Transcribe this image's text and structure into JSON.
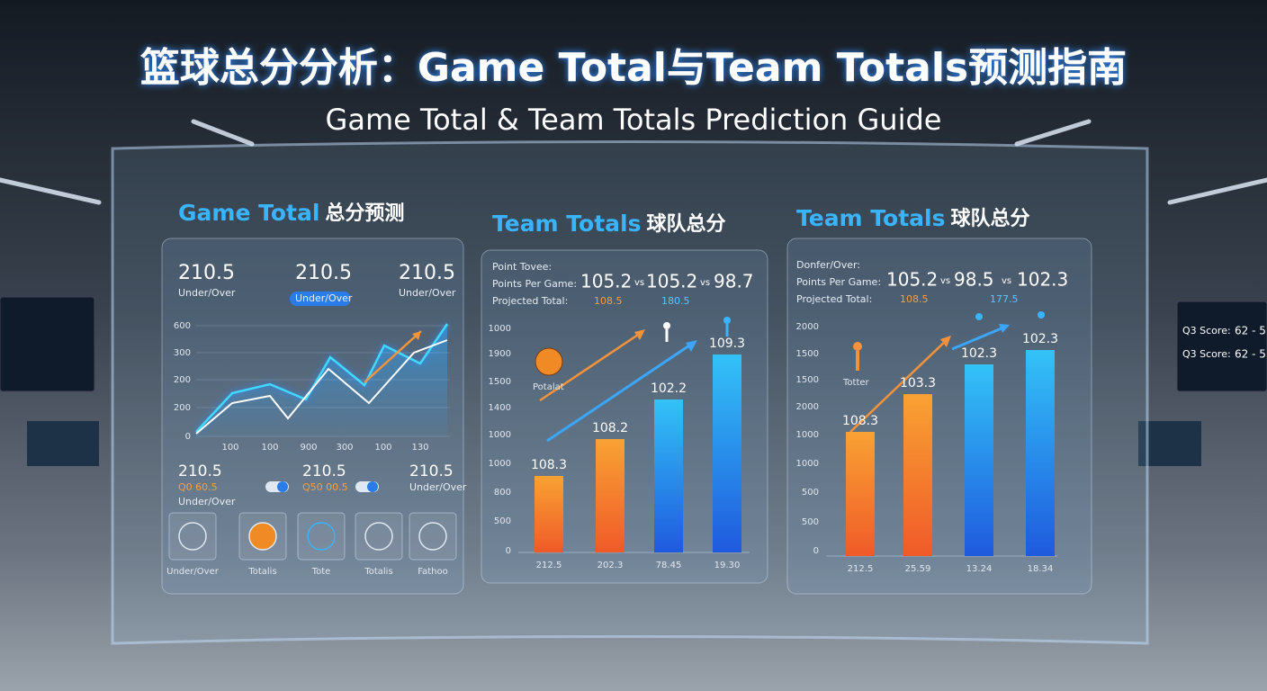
{
  "title": "篮球总分分析：Game Total与Team Totals预测指南",
  "subtitle": "Game Total & Team Totals Prediction Guide",
  "game_total": {
    "heading_en": "Game Total",
    "heading_zh": "总分预测",
    "top_stats": [
      {
        "value": "210.5",
        "label": "Under/Over"
      },
      {
        "value": "210.5",
        "label": "Under/Over"
      },
      {
        "value": "210.5",
        "label": "Under/Over"
      }
    ],
    "y_labels": [
      "600",
      "300",
      "200",
      "200",
      "0"
    ],
    "x_labels": [
      "100",
      "100",
      "900",
      "300",
      "100",
      "130"
    ],
    "bottom_stats": [
      {
        "value": "210.5",
        "label": "Q0 60.5",
        "sub": "Under/Over"
      },
      {
        "value": "210.5",
        "label": "Q50 00.5"
      },
      {
        "value": "210.5",
        "label": "Under/Over"
      }
    ],
    "icons": [
      "Under/Over",
      "Totalis",
      "Tote",
      "Totalis",
      "Fathoo"
    ]
  },
  "team_totals_1": {
    "heading_en": "Team Totals",
    "heading_zh": "球队总分",
    "line1": "Point Tovee:",
    "ppg_label": "Points Per Game:",
    "ppg": [
      "105.2",
      "vs",
      "105.2",
      "vs",
      "98.7"
    ],
    "projected_label": "Projected Total:",
    "projected": [
      "108.5",
      "180.5"
    ],
    "y_labels": [
      "1000",
      "1900",
      "1500",
      "1400",
      "1000",
      "1000",
      "800",
      "500",
      "0"
    ],
    "bar_labels": [
      "108.3",
      "108.2",
      "102.2",
      "109.3"
    ],
    "x_labels": [
      "212.5",
      "202.3",
      "78.45",
      "19.30"
    ],
    "icon_label": "Potalat"
  },
  "team_totals_2": {
    "heading_en": "Team Totals",
    "heading_zh": "球队总分",
    "line1": "Donfer/Over:",
    "ppg_label": "Points Per Game:",
    "ppg": [
      "105.2",
      "vs",
      "98.5",
      "vs",
      "102.3"
    ],
    "projected_label": "Projected Total:",
    "projected": [
      "108.5",
      "177.5"
    ],
    "y_labels": [
      "2000",
      "1500",
      "1500",
      "2000",
      "1000",
      "1000",
      "500",
      "500",
      "0"
    ],
    "bar_labels": [
      "108.3",
      "103.3",
      "102.3",
      "102.3"
    ],
    "x_labels": [
      "212.5",
      "25.59",
      "13.24",
      "18.34"
    ],
    "icon_label": "Totter"
  },
  "side_screen": [
    {
      "label": "Q3 Score:",
      "value": "62 - 5"
    },
    {
      "label": "Q3 Score:",
      "value": "62 - 5"
    }
  ]
}
